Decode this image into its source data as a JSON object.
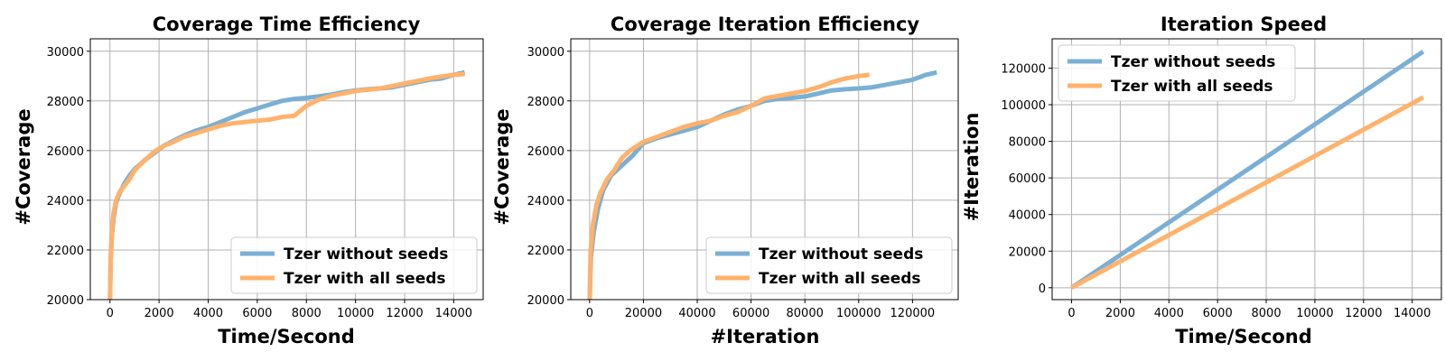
{
  "colors": {
    "series_1": "#7bafd4",
    "series_2": "#ffb26b",
    "grid": "#b0b0b0"
  },
  "chart_data": [
    {
      "type": "line",
      "title": "Coverage Time Efficiency",
      "xlabel": "Time/Second",
      "ylabel": "#Coverage",
      "xlim": [
        -800,
        15200
      ],
      "ylim": [
        20000,
        30500
      ],
      "xticks": [
        0,
        2000,
        4000,
        6000,
        8000,
        10000,
        12000,
        14000
      ],
      "yticks": [
        20000,
        22000,
        24000,
        26000,
        28000,
        30000
      ],
      "grid": true,
      "legend_position": "lower-right",
      "series": [
        {
          "name": "Tzer without seeds",
          "color": "#7bafd4",
          "x": [
            0,
            30,
            80,
            150,
            250,
            400,
            600,
            800,
            1000,
            1400,
            1800,
            2200,
            2600,
            3000,
            3500,
            4000,
            4500,
            5000,
            5500,
            6000,
            6500,
            7000,
            7500,
            8000,
            8500,
            9000,
            9500,
            10000,
            10500,
            11000,
            11500,
            12000,
            12500,
            13000,
            13500,
            14000,
            14450
          ],
          "y": [
            20000,
            21600,
            22600,
            23300,
            23900,
            24300,
            24700,
            25000,
            25250,
            25600,
            25900,
            26200,
            26400,
            26600,
            26800,
            26950,
            27150,
            27350,
            27550,
            27700,
            27850,
            28000,
            28080,
            28120,
            28180,
            28250,
            28350,
            28420,
            28470,
            28500,
            28550,
            28650,
            28750,
            28850,
            28900,
            29050,
            29150
          ]
        },
        {
          "name": "Tzer with all seeds",
          "color": "#ffb26b",
          "x": [
            0,
            30,
            80,
            150,
            250,
            400,
            600,
            800,
            1000,
            1400,
            1800,
            2200,
            2600,
            3000,
            3500,
            4000,
            4500,
            5000,
            5500,
            6000,
            6500,
            7000,
            7500,
            8000,
            8500,
            9000,
            9500,
            10000,
            10500,
            11000,
            11500,
            12000,
            12500,
            13000,
            13500,
            14000,
            14450
          ],
          "y": [
            20000,
            21800,
            22800,
            23500,
            24000,
            24350,
            24600,
            24850,
            25200,
            25600,
            25950,
            26200,
            26350,
            26550,
            26700,
            26850,
            27000,
            27100,
            27150,
            27200,
            27250,
            27350,
            27400,
            27800,
            28050,
            28200,
            28300,
            28400,
            28450,
            28500,
            28600,
            28700,
            28800,
            28900,
            28980,
            29050,
            29080
          ]
        }
      ]
    },
    {
      "type": "line",
      "title": "Coverage Iteration Efficiency",
      "xlabel": "#Iteration",
      "ylabel": "#Coverage",
      "xlim": [
        -7000,
        137000
      ],
      "ylim": [
        20000,
        30500
      ],
      "xticks": [
        0,
        20000,
        40000,
        60000,
        80000,
        100000,
        120000
      ],
      "yticks": [
        20000,
        22000,
        24000,
        26000,
        28000,
        30000
      ],
      "grid": true,
      "legend_position": "lower-right",
      "series": [
        {
          "name": "Tzer without seeds",
          "color": "#7bafd4",
          "x": [
            0,
            500,
            1500,
            3000,
            5000,
            8000,
            12000,
            16000,
            20000,
            25000,
            30000,
            35000,
            40000,
            45000,
            50000,
            55000,
            60000,
            65000,
            70000,
            75000,
            80000,
            85000,
            90000,
            95000,
            100000,
            105000,
            110000,
            115000,
            120000,
            125000,
            129000
          ],
          "y": [
            20000,
            21700,
            22700,
            23600,
            24400,
            25000,
            25400,
            25800,
            26300,
            26500,
            26650,
            26800,
            26950,
            27200,
            27450,
            27650,
            27800,
            28000,
            28080,
            28120,
            28180,
            28300,
            28420,
            28470,
            28500,
            28550,
            28650,
            28750,
            28850,
            29050,
            29150
          ]
        },
        {
          "name": "Tzer with all seeds",
          "color": "#ffb26b",
          "x": [
            0,
            400,
            1200,
            2500,
            4000,
            6500,
            9000,
            12000,
            15000,
            20000,
            25000,
            30000,
            35000,
            40000,
            45000,
            50000,
            55000,
            60000,
            65000,
            70000,
            75000,
            80000,
            85000,
            90000,
            95000,
            100000,
            104000
          ],
          "y": [
            20000,
            22000,
            23000,
            23800,
            24300,
            24850,
            25200,
            25700,
            26000,
            26350,
            26550,
            26750,
            26950,
            27100,
            27200,
            27400,
            27550,
            27800,
            28100,
            28200,
            28300,
            28400,
            28550,
            28750,
            28900,
            29000,
            29050
          ]
        }
      ]
    },
    {
      "type": "line",
      "title": "Iteration Speed",
      "xlabel": "Time/Second",
      "ylabel": "#Iteration",
      "xlim": [
        -800,
        15200
      ],
      "ylim": [
        -6500,
        136000
      ],
      "xticks": [
        0,
        2000,
        4000,
        6000,
        8000,
        10000,
        12000,
        14000
      ],
      "yticks": [
        0,
        20000,
        40000,
        60000,
        80000,
        100000,
        120000
      ],
      "grid": true,
      "legend_position": "top-left",
      "series": [
        {
          "name": "Tzer without seeds",
          "color": "#7bafd4",
          "x": [
            0,
            14450
          ],
          "y": [
            0,
            129000
          ]
        },
        {
          "name": "Tzer with all seeds",
          "color": "#ffb26b",
          "x": [
            0,
            14450
          ],
          "y": [
            0,
            104000
          ]
        }
      ]
    }
  ]
}
